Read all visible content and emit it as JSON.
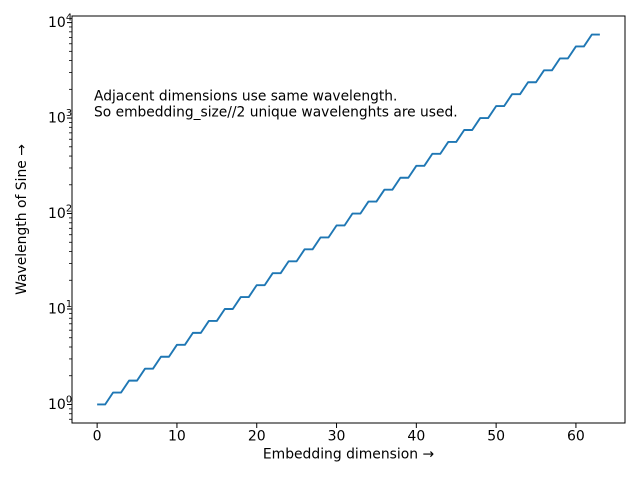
{
  "figure": {
    "background": "#ffffff",
    "axes_color": "#000000",
    "line_color": "#1f77b4"
  },
  "chart_data": {
    "type": "line",
    "title": "",
    "xlabel": "Embedding dimension →",
    "ylabel": "Wavelength of Sine →",
    "yscale": "log",
    "grid": false,
    "legend": "none",
    "line_color": "#1f77b4",
    "xlim": [
      -3.15,
      66.15
    ],
    "ylim_log": [
      -0.194,
      4.069
    ],
    "xticks": [
      0,
      10,
      20,
      30,
      40,
      50,
      60
    ],
    "ytick_exponents": [
      0,
      1,
      2,
      3,
      4
    ],
    "ytick_labels": [
      "10⁰",
      "10¹",
      "10²",
      "10³",
      "10⁴"
    ],
    "annotations": [
      "Adjacent dimensions use same wavelength.",
      "So embedding_size//2 unique wavelenghts are used."
    ],
    "x": [
      0,
      1,
      2,
      3,
      4,
      5,
      6,
      7,
      8,
      9,
      10,
      11,
      12,
      13,
      14,
      15,
      16,
      17,
      18,
      19,
      20,
      21,
      22,
      23,
      24,
      25,
      26,
      27,
      28,
      29,
      30,
      31,
      32,
      33,
      34,
      35,
      36,
      37,
      38,
      39,
      40,
      41,
      42,
      43,
      44,
      45,
      46,
      47,
      48,
      49,
      50,
      51,
      52,
      53,
      54,
      55,
      56,
      57,
      58,
      59,
      60,
      61,
      62,
      63
    ],
    "y": [
      1.0,
      1.0,
      1.334,
      1.334,
      1.778,
      1.778,
      2.371,
      2.371,
      3.162,
      3.162,
      4.217,
      4.217,
      5.623,
      5.623,
      7.499,
      7.499,
      10.0,
      10.0,
      13.34,
      13.34,
      17.78,
      17.78,
      23.71,
      23.71,
      31.62,
      31.62,
      42.17,
      42.17,
      56.23,
      56.23,
      74.99,
      74.99,
      100.0,
      100.0,
      133.4,
      133.4,
      177.8,
      177.8,
      237.1,
      237.1,
      316.2,
      316.2,
      421.7,
      421.7,
      562.3,
      562.3,
      749.9,
      749.9,
      1000.0,
      1000.0,
      1334.0,
      1334.0,
      1778.0,
      1778.0,
      2371.0,
      2371.0,
      3162.0,
      3162.0,
      4217.0,
      4217.0,
      5623.0,
      5623.0,
      7499.0,
      7499.0
    ]
  }
}
